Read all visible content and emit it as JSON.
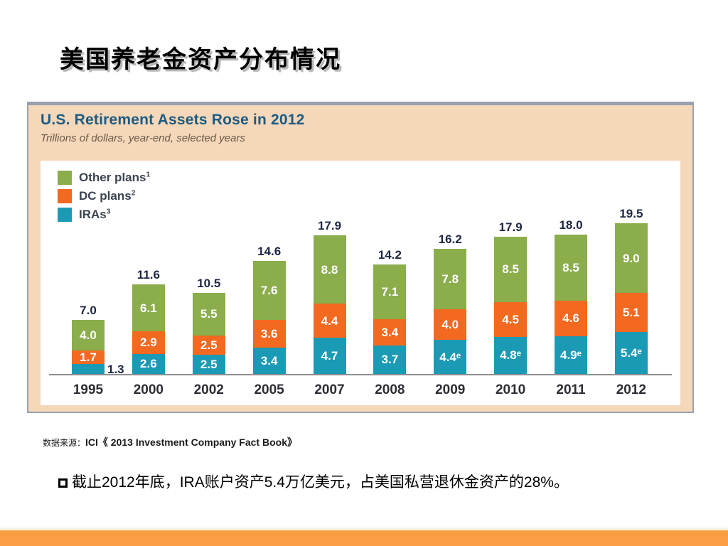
{
  "slide": {
    "title": "美国养老金资产分布情况",
    "source_prefix": "数据来源：",
    "source_text": "ICI《 2013 Investment Company Fact Book》",
    "bullet_text": "截止2012年底，IRA账户资产5.4万亿美元，占美国私营退休金资产的28%。"
  },
  "chart_data": {
    "type": "bar",
    "stacked": true,
    "title": "U.S. Retirement Assets Rose in 2012",
    "subtitle": "Trillions of dollars, year-end, selected years",
    "categories": [
      "1995",
      "2000",
      "2002",
      "2005",
      "2007",
      "2008",
      "2009",
      "2010",
      "2011",
      "2012"
    ],
    "totals": [
      7.0,
      11.6,
      10.5,
      14.6,
      17.9,
      14.2,
      16.2,
      17.9,
      18.0,
      19.5
    ],
    "total_labels": [
      "7.0",
      "11.6",
      "10.5",
      "14.6",
      "17.9",
      "14.2",
      "16.2",
      "17.9",
      "18.0",
      "19.5"
    ],
    "series": [
      {
        "name": "Other plans",
        "sup": "1",
        "color": "#8bad4c",
        "values": [
          4.0,
          6.1,
          5.5,
          7.6,
          8.8,
          7.1,
          7.8,
          8.5,
          8.5,
          9.0
        ],
        "labels": [
          "4.0",
          "6.1",
          "5.5",
          "7.6",
          "8.8",
          "7.1",
          "7.8",
          "8.5",
          "8.5",
          "9.0"
        ]
      },
      {
        "name": "DC plans",
        "sup": "2",
        "color": "#f2691f",
        "values": [
          1.7,
          2.9,
          2.5,
          3.6,
          4.4,
          3.4,
          4.0,
          4.5,
          4.6,
          5.1
        ],
        "labels": [
          "1.7",
          "2.9",
          "2.5",
          "3.6",
          "4.4",
          "3.4",
          "4.0",
          "4.5",
          "4.6",
          "5.1"
        ]
      },
      {
        "name": "IRAs",
        "sup": "3",
        "color": "#1a9ab5",
        "values": [
          1.3,
          2.6,
          2.5,
          3.4,
          4.7,
          3.7,
          4.4,
          4.8,
          4.9,
          5.4
        ],
        "labels": [
          "1.3",
          "2.6",
          "2.5",
          "3.4",
          "4.7",
          "3.7",
          "4.4ᵉ",
          "4.8ᵉ",
          "4.9ᵉ",
          "5.4ᵉ"
        ],
        "label_outside": [
          true,
          false,
          false,
          false,
          false,
          false,
          false,
          false,
          false,
          false
        ]
      }
    ],
    "ylim": [
      0,
      19.5
    ],
    "unit": "trillions of dollars",
    "legend_position": "top-left",
    "grid": false,
    "colors": {
      "peach_background": "#f5d7b9",
      "title_blue": "#1d5b82",
      "subtitle_brown": "#6a5a49",
      "label_navy": "#1e2742"
    }
  },
  "footer": {
    "bar_color": "#fb9d42"
  }
}
